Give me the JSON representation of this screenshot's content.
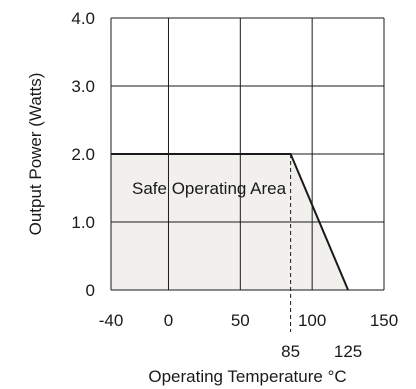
{
  "chart_data": {
    "type": "area",
    "xlabel": "Operating Temperature °C",
    "ylabel": "Output Power (Watts)",
    "xlim": [
      -40,
      150
    ],
    "ylim": [
      0,
      4.0
    ],
    "grid": true,
    "x_ticks": [
      {
        "value": -40,
        "label": "-40"
      },
      {
        "value": 0,
        "label": "0"
      },
      {
        "value": 50,
        "label": "50"
      },
      {
        "value": 100,
        "label": "100"
      },
      {
        "value": 150,
        "label": "150"
      }
    ],
    "y_ticks": [
      {
        "value": 0,
        "label": "0"
      },
      {
        "value": 1.0,
        "label": "1.0"
      },
      {
        "value": 2.0,
        "label": "2.0"
      },
      {
        "value": 3.0,
        "label": "3.0"
      },
      {
        "value": 4.0,
        "label": "4.0"
      }
    ],
    "extra_x_labels": [
      {
        "value": 85,
        "label": "85"
      },
      {
        "value": 125,
        "label": "125"
      }
    ],
    "series": [
      {
        "x": [
          -40,
          85,
          125
        ],
        "y": [
          2.0,
          2.0,
          0
        ]
      }
    ],
    "region_label": "Safe Operating Area",
    "marker_line_x": 85,
    "fill_color": "#f1f0ec",
    "line_color": "#1a1a1a"
  }
}
